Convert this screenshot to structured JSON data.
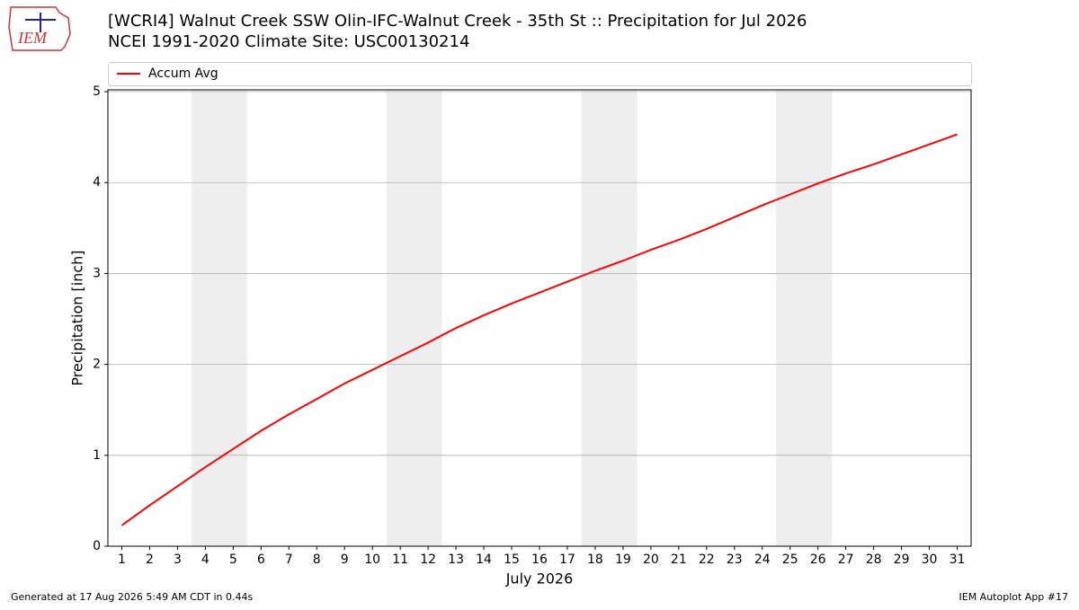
{
  "chart_data": {
    "type": "line",
    "title": "[WCRI4] Walnut Creek  SSW Olin-IFC-Walnut Creek - 35th St :: Precipitation for Jul 2026",
    "subtitle": "NCEI 1991-2020 Climate Site: USC00130214",
    "logo_text": "IEM",
    "x_label": "July 2026",
    "y_label": "Precipitation [inch]",
    "x": [
      1,
      2,
      3,
      4,
      5,
      6,
      7,
      8,
      9,
      10,
      11,
      12,
      13,
      14,
      15,
      16,
      17,
      18,
      19,
      20,
      21,
      22,
      23,
      24,
      25,
      26,
      27,
      28,
      29,
      30,
      31
    ],
    "series": [
      {
        "name": "Accum Avg",
        "color": "#ff0000",
        "values": [
          0.23,
          0.45,
          0.66,
          0.87,
          1.07,
          1.27,
          1.45,
          1.62,
          1.79,
          1.94,
          2.09,
          2.24,
          2.4,
          2.54,
          2.67,
          2.79,
          2.91,
          3.03,
          3.14,
          3.26,
          3.37,
          3.49,
          3.62,
          3.75,
          3.87,
          3.99,
          4.1,
          4.2,
          4.31,
          4.42,
          4.53
        ]
      }
    ],
    "shaded_ranges": [
      [
        3.5,
        5.5
      ],
      [
        10.5,
        12.5
      ],
      [
        17.5,
        19.5
      ],
      [
        24.5,
        26.5
      ]
    ],
    "shade_color": "#eeeeee",
    "xlim": [
      0.5,
      31.5
    ],
    "ylim": [
      0,
      5.02
    ],
    "xticks": [
      1,
      2,
      3,
      4,
      5,
      6,
      7,
      8,
      9,
      10,
      11,
      12,
      13,
      14,
      15,
      16,
      17,
      18,
      19,
      20,
      21,
      22,
      23,
      24,
      25,
      26,
      27,
      28,
      29,
      30,
      31
    ],
    "yticks": [
      0,
      1,
      2,
      3,
      4,
      5
    ],
    "grid": true,
    "footer_left": "Generated at 17 Aug 2026 5:49 AM CDT in 0.44s",
    "footer_right": "IEM Autoplot App #17"
  }
}
